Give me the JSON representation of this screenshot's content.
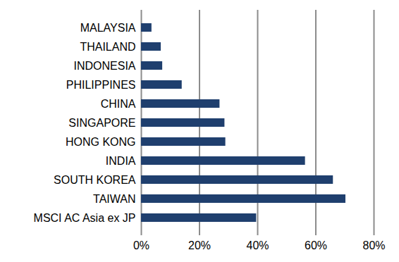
{
  "chart_data": {
    "type": "bar",
    "orientation": "horizontal",
    "categories": [
      "MALAYSIA",
      "THAILAND",
      "INDONESIA",
      "PHILIPPINES",
      "CHINA",
      "SINGAPORE",
      "HONG KONG",
      "INDIA",
      "SOUTH KOREA",
      "TAIWAN",
      "MSCI AC Asia ex JP"
    ],
    "values": [
      3.6,
      6.8,
      7.3,
      14,
      27,
      28.7,
      29,
      56.4,
      66,
      70.3,
      39.6
    ],
    "color": "#1f3f6e",
    "xlim": [
      0,
      80
    ],
    "xticks": [
      {
        "value": 0,
        "label": "0%"
      },
      {
        "value": 20,
        "label": "20%"
      },
      {
        "value": 40,
        "label": "40%"
      },
      {
        "value": 60,
        "label": "60%"
      },
      {
        "value": 80,
        "label": "80%"
      }
    ],
    "grid": true
  }
}
